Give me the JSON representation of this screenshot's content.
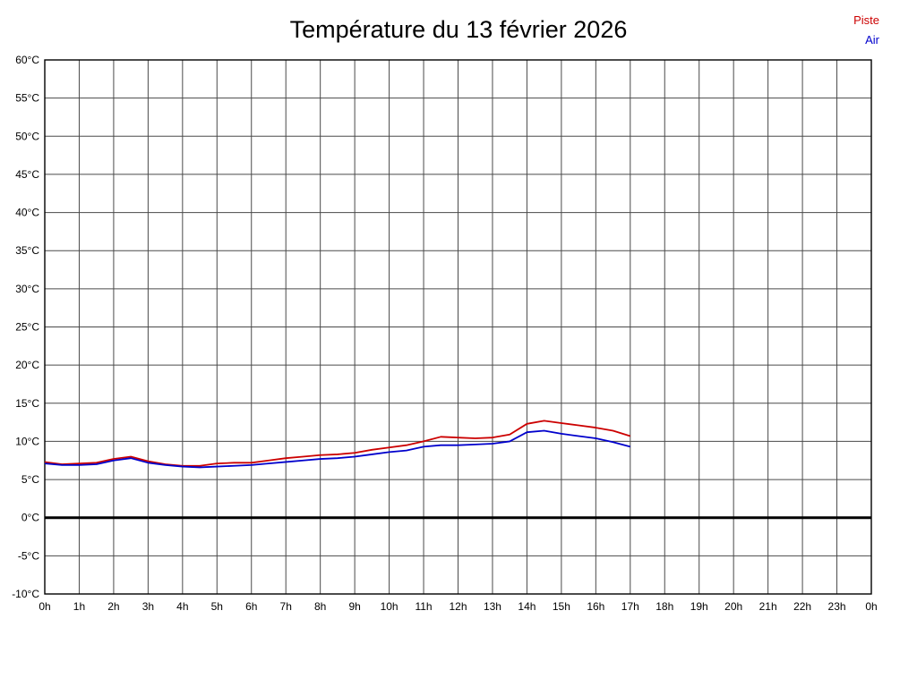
{
  "chart_data": {
    "type": "line",
    "title": "Température du 13 février 2026",
    "legend_position": "top-right",
    "grid": true,
    "grid_color": "#4a4a4a",
    "border_color": "#000000",
    "ylim": [
      -10,
      60
    ],
    "y_tick_step": 5,
    "x_max": 24,
    "x_tick_step": 1,
    "x_start": 0,
    "x_step": 0.5,
    "y_tick_labels": [
      "-10°C",
      "-5°C",
      "0°C",
      "5°C",
      "10°C",
      "15°C",
      "20°C",
      "25°C",
      "30°C",
      "35°C",
      "40°C",
      "45°C",
      "50°C",
      "55°C",
      "60°C"
    ],
    "x_tick_labels": [
      "0h",
      "1h",
      "2h",
      "3h",
      "4h",
      "5h",
      "6h",
      "7h",
      "8h",
      "9h",
      "10h",
      "11h",
      "12h",
      "13h",
      "14h",
      "15h",
      "16h",
      "17h",
      "18h",
      "19h",
      "20h",
      "21h",
      "22h",
      "23h",
      "0h"
    ],
    "zero_line": {
      "value": 0,
      "color": "#000000",
      "width": 3
    },
    "series": [
      {
        "name": "Piste",
        "color": "#cc0000",
        "values": [
          7.3,
          7.0,
          7.1,
          7.2,
          7.7,
          8.0,
          7.4,
          7.0,
          6.8,
          6.8,
          7.1,
          7.2,
          7.2,
          7.5,
          7.8,
          8.0,
          8.2,
          8.3,
          8.5,
          8.9,
          9.2,
          9.5,
          10.0,
          10.6,
          10.5,
          10.4,
          10.5,
          10.9,
          12.3,
          12.7,
          12.4,
          12.1,
          11.8,
          11.4,
          10.7
        ]
      },
      {
        "name": "Air",
        "color": "#0000cc",
        "values": [
          7.1,
          6.9,
          6.9,
          7.0,
          7.5,
          7.8,
          7.2,
          6.9,
          6.7,
          6.6,
          6.7,
          6.8,
          6.9,
          7.1,
          7.3,
          7.5,
          7.7,
          7.8,
          8.0,
          8.3,
          8.6,
          8.8,
          9.3,
          9.5,
          9.5,
          9.6,
          9.7,
          10.0,
          11.2,
          11.4,
          11.0,
          10.7,
          10.4,
          9.9,
          9.3
        ]
      }
    ]
  }
}
